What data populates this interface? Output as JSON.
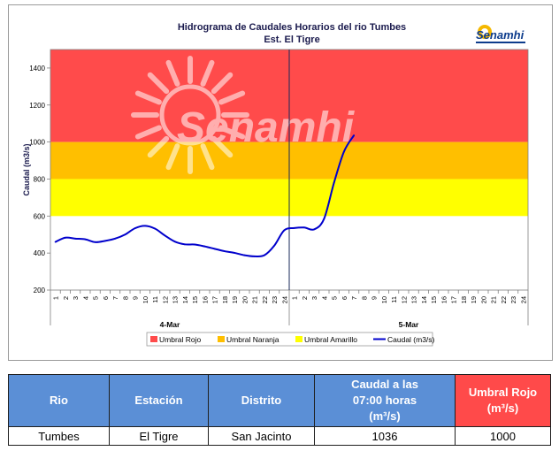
{
  "header": {
    "title": "Hidrograma de Caudales Horarios del rio Tumbes",
    "subtitle": "Est. El Tigre",
    "logo_text": "Senamhi",
    "watermark": "Senamhi"
  },
  "chart_data": {
    "type": "line",
    "title": "Hidrograma de Caudales Horarios del rio Tumbes",
    "subtitle": "Est. El Tigre",
    "ylabel": "Caudal  (m3/s)",
    "xlabel": "",
    "ylim": [
      200,
      1500
    ],
    "yticks": [
      200,
      400,
      600,
      800,
      1000,
      1200,
      1400
    ],
    "x_tick_labels": [
      "1",
      "2",
      "3",
      "4",
      "5",
      "6",
      "7",
      "8",
      "9",
      "10",
      "11",
      "12",
      "13",
      "14",
      "15",
      "16",
      "17",
      "18",
      "19",
      "20",
      "21",
      "22",
      "23",
      "24",
      "1",
      "2",
      "3",
      "4",
      "5",
      "6",
      "7",
      "8",
      "9",
      "10",
      "11",
      "12",
      "13",
      "14",
      "15",
      "16",
      "17",
      "18",
      "19",
      "20",
      "21",
      "22",
      "23",
      "24"
    ],
    "day_labels": [
      "4-Mar",
      "5-Mar"
    ],
    "thresholds": [
      {
        "name": "Umbral Rojo",
        "from": 1000,
        "to": 1500,
        "color": "#ff4b4b"
      },
      {
        "name": "Umbral Naranja",
        "from": 800,
        "to": 1000,
        "color": "#ffbf00"
      },
      {
        "name": "Umbral Amarillo",
        "from": 600,
        "to": 800,
        "color": "#ffff00"
      }
    ],
    "series": [
      {
        "name": "Caudal (m3/s)",
        "color": "#0000cc",
        "values": [
          460,
          483,
          478,
          474,
          459,
          466,
          478,
          500,
          534,
          547,
          532,
          495,
          462,
          447,
          446,
          436,
          423,
          410,
          401,
          388,
          382,
          388,
          440,
          523,
          535,
          538,
          528,
          585,
          780,
          948,
          1036
        ]
      }
    ],
    "legend_position": "bottom",
    "grid": false
  },
  "legend": [
    {
      "label": "Umbral Rojo",
      "color": "#ff4b4b",
      "kind": "box"
    },
    {
      "label": "Umbral Naranja",
      "color": "#ffbf00",
      "kind": "box"
    },
    {
      "label": "Umbral Amarillo",
      "color": "#ffff00",
      "kind": "box"
    },
    {
      "label": "Caudal (m3/s)",
      "color": "#0000cc",
      "kind": "line"
    }
  ],
  "table": {
    "headers": {
      "rio": "Rio",
      "estacion": "Estación",
      "distrito": "Distrito",
      "caudal_line1": "Caudal a las",
      "caudal_line2": "07:00 horas",
      "caudal_line3": "(m³/s)",
      "umbral_line1": "Umbral Rojo",
      "umbral_line2": "(m³/s)"
    },
    "row": {
      "rio": "Tumbes",
      "estacion": "El Tigre",
      "distrito": "San Jacinto",
      "caudal": "1036",
      "umbral": "1000"
    }
  }
}
